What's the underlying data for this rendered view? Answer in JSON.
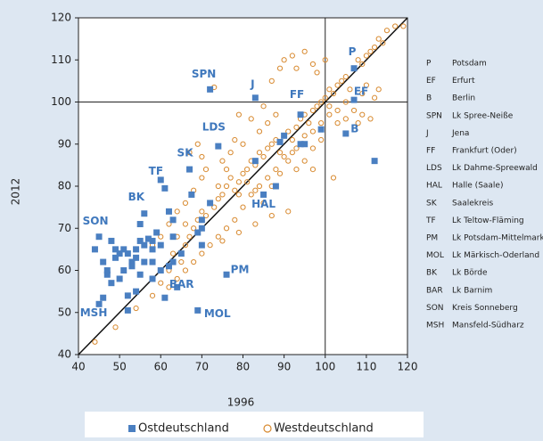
{
  "chart_data": {
    "type": "scatter",
    "xlabel": "1996",
    "ylabel": "2012",
    "xlim": [
      40,
      120
    ],
    "ylim": [
      40,
      120
    ],
    "xticks": [
      40,
      50,
      60,
      70,
      80,
      90,
      100,
      110,
      120
    ],
    "yticks": [
      40,
      50,
      60,
      70,
      80,
      90,
      100,
      110,
      120
    ],
    "hline": 100,
    "vline": 100,
    "series": [
      {
        "name": "Ostdeutschland",
        "color": "#4a7fc1",
        "marker": "square",
        "x": [
          72,
          83,
          94,
          107,
          107,
          105,
          112,
          99,
          90,
          89,
          74,
          83,
          85,
          88,
          67,
          61,
          56,
          60,
          67.5,
          70,
          62,
          63,
          63,
          59,
          58,
          55,
          52,
          54,
          56,
          58,
          60,
          55,
          57,
          53,
          51,
          50,
          48,
          47,
          47,
          46,
          49,
          48,
          45,
          52,
          54,
          60,
          58,
          53,
          55,
          61,
          63,
          64,
          76,
          69,
          45,
          46,
          50,
          49,
          51,
          65,
          70,
          69,
          52,
          44,
          58,
          62,
          56,
          54,
          70,
          72,
          94,
          95
        ],
        "values": [
          103,
          101,
          97,
          100.5,
          108,
          92.5,
          86,
          93.5,
          92,
          90.5,
          89.5,
          86,
          78,
          80,
          84,
          79.5,
          73.5,
          81.5,
          78,
          70,
          74,
          72,
          68,
          69,
          67,
          71,
          64,
          63,
          62,
          65,
          66,
          67,
          67.5,
          62,
          60,
          58,
          57,
          60,
          59,
          62,
          63,
          67,
          68,
          54,
          55,
          60,
          58,
          61,
          59,
          53.5,
          62,
          56,
          59,
          50.5,
          52,
          53.5,
          64,
          65,
          65,
          64,
          66,
          69,
          50.5,
          65,
          62,
          61,
          66,
          65,
          72,
          76,
          90,
          90
        ]
      },
      {
        "name": "Westdeutschland",
        "color": "#d88a30",
        "marker": "circle",
        "x": [
          44,
          49,
          54,
          58,
          60,
          62,
          63,
          65,
          66,
          67,
          68,
          69,
          70,
          71,
          72,
          73,
          74,
          75,
          76,
          77,
          78,
          79,
          80,
          81,
          82,
          83,
          84,
          85,
          86,
          87,
          88,
          89,
          90,
          91,
          92,
          93,
          94,
          95,
          96,
          97,
          98,
          99,
          100,
          101,
          102,
          103,
          104,
          105,
          106,
          107,
          108,
          109,
          110,
          111,
          112,
          113,
          115,
          117,
          119,
          114,
          110,
          113,
          112,
          109,
          108,
          105,
          103,
          101,
          99,
          97,
          95,
          93,
          92,
          90,
          88,
          86,
          84,
          82,
          80,
          78,
          76,
          74,
          72,
          70,
          68,
          66,
          64,
          62,
          72,
          73,
          87,
          89,
          90,
          92,
          93,
          95,
          97,
          98,
          100,
          88,
          86,
          85,
          84,
          82,
          79,
          78,
          80,
          77,
          75,
          71,
          70,
          68,
          66,
          64,
          62,
          60,
          58,
          67,
          69,
          74,
          76,
          79,
          81,
          83,
          85,
          87,
          89,
          91,
          93,
          95,
          97,
          99,
          101,
          103,
          105,
          107,
          109,
          111,
          102,
          97,
          91,
          87,
          83,
          79,
          75,
          66,
          64,
          70
        ],
        "values": [
          43,
          46.5,
          51,
          54,
          57,
          60,
          64,
          62,
          66,
          68,
          70,
          72,
          74,
          73,
          76,
          75,
          77,
          78,
          80,
          82,
          79,
          81,
          83,
          84,
          86,
          85,
          88,
          87,
          89,
          90,
          91,
          88,
          92,
          93,
          91,
          94,
          96,
          97,
          95,
          98,
          99,
          100,
          101,
          103,
          102,
          104,
          105,
          106,
          103,
          108,
          110,
          109,
          111,
          112,
          113,
          115,
          117,
          118,
          118,
          114,
          104,
          103,
          101,
          97,
          95,
          96,
          98,
          97,
          91,
          93,
          86,
          84,
          88,
          87,
          84,
          82,
          80,
          78,
          75,
          72,
          70,
          68,
          66,
          64,
          62,
          60,
          58,
          56,
          103,
          103.5,
          105,
          108,
          110,
          111,
          108,
          112,
          109,
          107,
          110,
          97,
          95,
          99,
          93,
          96,
          97,
          91,
          90,
          88,
          86,
          84,
          82,
          79,
          76,
          74,
          71,
          68,
          66,
          88,
          90,
          80,
          84,
          78,
          81,
          79,
          76,
          80,
          83,
          86,
          89,
          92,
          89,
          95,
          99,
          95,
          100,
          98,
          102,
          96,
          82,
          84,
          74,
          73,
          71,
          69,
          67,
          71,
          68,
          87
        ]
      }
    ],
    "annotations": [
      {
        "text": "SPN",
        "x": 72,
        "y": 103
      },
      {
        "text": "J",
        "x": 83,
        "y": 101
      },
      {
        "text": "FF",
        "x": 94,
        "y": 97
      },
      {
        "text": "EF",
        "x": 107,
        "y": 100.5
      },
      {
        "text": "P",
        "x": 107,
        "y": 108
      },
      {
        "text": "B",
        "x": 105,
        "y": 92.5
      },
      {
        "text": "LDS",
        "x": 74,
        "y": 89.5
      },
      {
        "text": "SK",
        "x": 67,
        "y": 84
      },
      {
        "text": "TF",
        "x": 61,
        "y": 79.5
      },
      {
        "text": "BK",
        "x": 56,
        "y": 73.5
      },
      {
        "text": "HAL",
        "x": 85,
        "y": 78
      },
      {
        "text": "SON",
        "x": 45,
        "y": 68
      },
      {
        "text": "PM",
        "x": 76,
        "y": 59
      },
      {
        "text": "BAR",
        "x": 64,
        "y": 56
      },
      {
        "text": "MSH",
        "x": 45,
        "y": 52
      },
      {
        "text": "MOL",
        "x": 69,
        "y": 50.5
      }
    ],
    "key": [
      {
        "code": "P",
        "name": "Potsdam"
      },
      {
        "code": "EF",
        "name": "Erfurt"
      },
      {
        "code": "B",
        "name": "Berlin"
      },
      {
        "code": "SPN",
        "name": "Lk Spree-Neiße"
      },
      {
        "code": "J",
        "name": "Jena"
      },
      {
        "code": "FF",
        "name": "Frankfurt (Oder)"
      },
      {
        "code": "LDS",
        "name": "Lk Dahme-Spreewald"
      },
      {
        "code": "HAL",
        "name": "Halle (Saale)"
      },
      {
        "code": "SK",
        "name": "Saalekreis"
      },
      {
        "code": "TF",
        "name": "Lk Teltow-Fläming"
      },
      {
        "code": "PM",
        "name": "Lk Potsdam-Mittelmark"
      },
      {
        "code": "MOL",
        "name": "Lk Märkisch-Oderland"
      },
      {
        "code": "BK",
        "name": "Lk Börde"
      },
      {
        "code": "BAR",
        "name": "Lk Barnim"
      },
      {
        "code": "SON",
        "name": "Kreis Sonneberg"
      },
      {
        "code": "MSH",
        "name": "Mansfeld-Südharz"
      }
    ]
  }
}
